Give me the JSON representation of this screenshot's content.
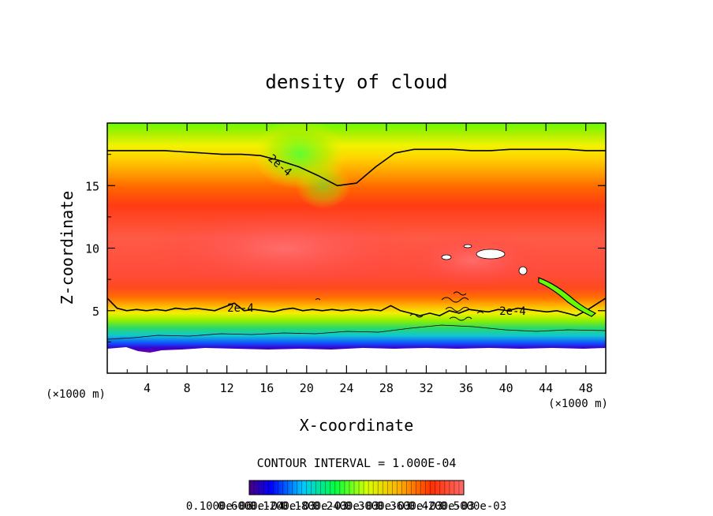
{
  "chart_data": {
    "type": "heatmap",
    "title": "density of cloud",
    "xlabel": "X-coordinate",
    "ylabel": "Z-coordinate",
    "x_unit": "(×1000 m)",
    "y_unit": "(×1000 m)",
    "xlim": [
      0,
      50
    ],
    "ylim": [
      0,
      20
    ],
    "x_ticks": [
      4,
      8,
      12,
      16,
      20,
      24,
      28,
      32,
      36,
      40,
      44,
      48
    ],
    "y_ticks": [
      5,
      10,
      15
    ],
    "contour_interval_label": "CONTOUR INTERVAL = 1.000E-04",
    "contour_label": "2e-4",
    "contour_level": 0.0002,
    "colorbar_labels": [
      "0.1000e-06",
      "0.6000e-04",
      "0.1200e-03",
      "0.1800e-03",
      "0.2400e-03",
      "0.3000e-03",
      "0.3600e-03",
      "0.4200e-03",
      "0.5000e-03"
    ],
    "colorbar_range": [
      1e-07,
      0.0005
    ],
    "upper_contour_z": [
      17.8,
      17.8,
      17.8,
      17.8,
      17.7,
      17.6,
      17.5,
      17.5,
      17.4,
      17.0,
      16.5,
      15.8,
      15.0,
      15.2,
      16.5,
      17.6,
      17.9,
      17.9,
      17.9,
      17.8,
      17.8,
      17.9,
      17.9,
      17.9,
      17.9,
      17.8,
      17.8
    ],
    "lower_contour_z": [
      6.0,
      5.2,
      5.0,
      5.1,
      5.0,
      5.1,
      5.0,
      5.2,
      5.1,
      5.2,
      5.1,
      5.0,
      5.3,
      5.6,
      5.0,
      5.1,
      5.0,
      4.9,
      5.1,
      5.2,
      5.0,
      5.1,
      5.0,
      5.1,
      5.0,
      5.1,
      5.0,
      5.1,
      5.0,
      5.4,
      5.0,
      4.8,
      4.6,
      4.8,
      4.6,
      5.0,
      4.8,
      5.1,
      5.0,
      4.9,
      5.1,
      5.0,
      5.2,
      5.1,
      5.0,
      4.9,
      5.0,
      4.8,
      4.6,
      5.0,
      5.5,
      6.0
    ]
  }
}
